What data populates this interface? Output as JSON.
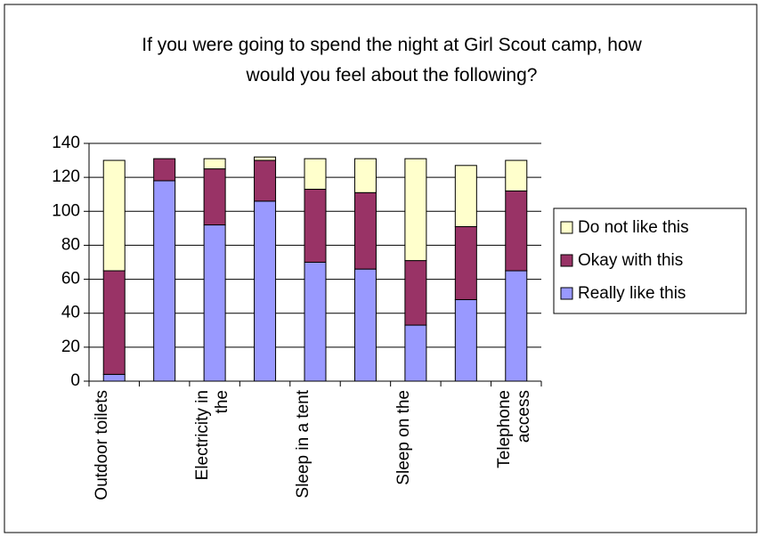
{
  "chart_data": {
    "type": "stacked_bar",
    "title": "If you were going to spend the night at Girl Scout camp, how would you feel about the following?",
    "categories": [
      "Outdoor toilets",
      null,
      "Electricity in the",
      null,
      "Sleep in a tent",
      null,
      "Sleep on the",
      null,
      "Telephone access"
    ],
    "series": [
      {
        "name": "Really like this",
        "color": "#9999ff",
        "values": [
          4,
          118,
          92,
          106,
          70,
          66,
          33,
          48,
          65
        ]
      },
      {
        "name": "Okay with this",
        "color": "#993366",
        "values": [
          61,
          13,
          33,
          24,
          43,
          45,
          38,
          43,
          47
        ]
      },
      {
        "name": "Do not like this",
        "color": "#ffffcc",
        "values": [
          65,
          0,
          6,
          2,
          18,
          20,
          60,
          36,
          18
        ]
      }
    ],
    "ylim": [
      0,
      140
    ],
    "yticks": [
      0,
      20,
      40,
      60,
      80,
      100,
      120,
      140
    ],
    "grid": true,
    "legend": "right"
  }
}
